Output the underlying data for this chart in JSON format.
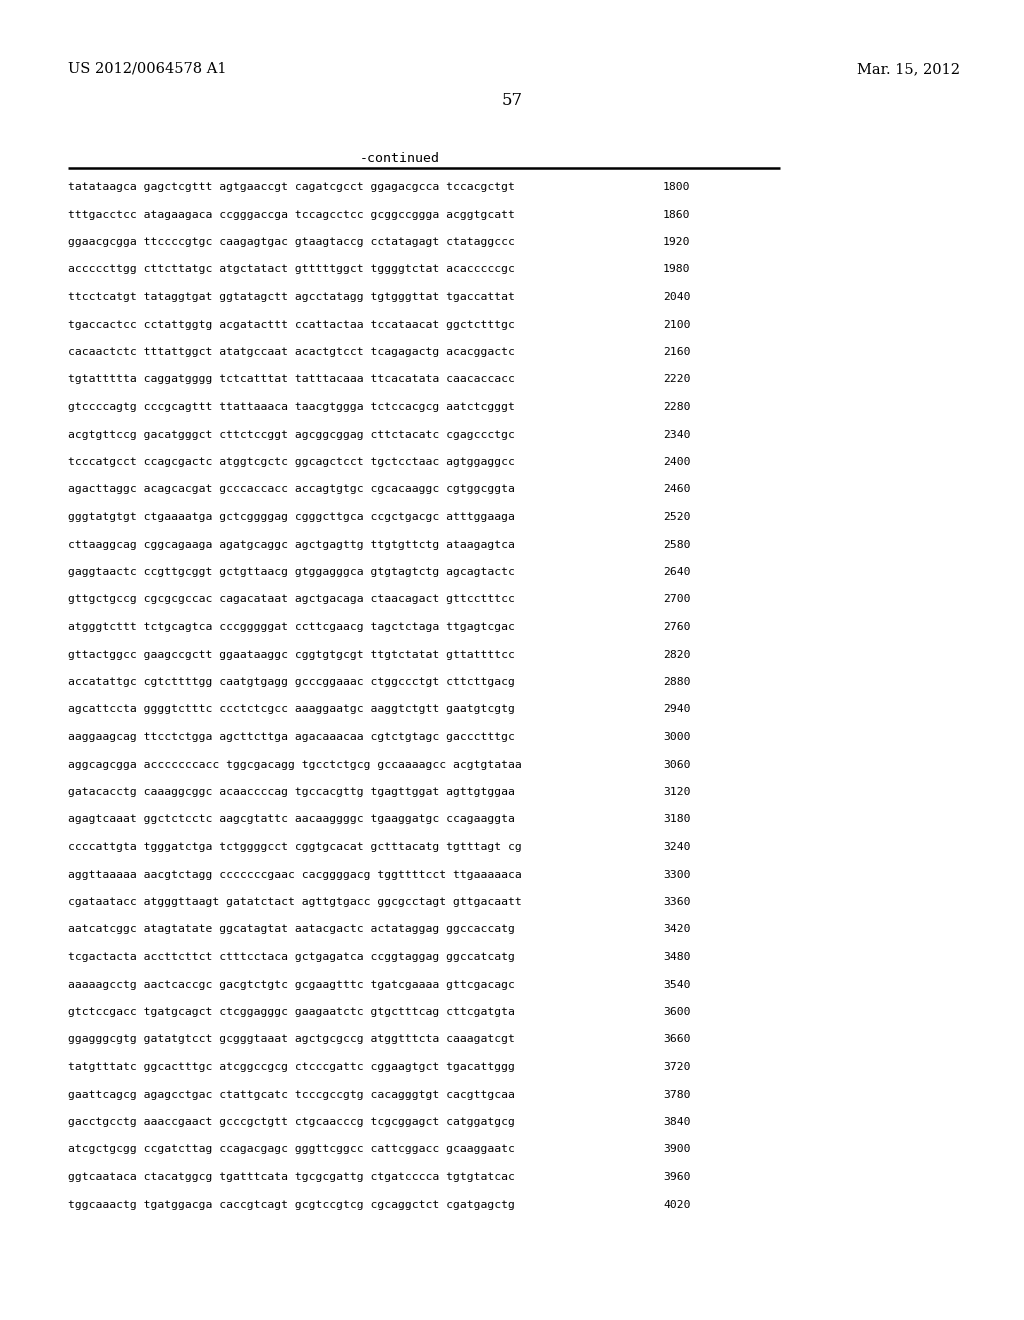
{
  "header_left": "US 2012/0064578 A1",
  "header_right": "Mar. 15, 2012",
  "page_number": "57",
  "continued_label": "-continued",
  "bg_color": "#ffffff",
  "text_color": "#000000",
  "font_size": 8.2,
  "header_font_size": 10.5,
  "page_num_font_size": 12,
  "continued_font_size": 9.5,
  "sequence_lines": [
    [
      "tatataagca gagctcgttt agtgaaccgt cagatcgcct ggagacgcca tccacgctgt",
      "1800"
    ],
    [
      "tttgacctcc atagaagaca ccgggaccga tccagcctcc gcggccggga acggtgcatt",
      "1860"
    ],
    [
      "ggaacgcgga ttccccgtgc caagagtgac gtaagtaccg cctatagagt ctataggccc",
      "1920"
    ],
    [
      "acccccttgg cttcttatgc atgctatact gtttttggct tggggtctat acacccccgc",
      "1980"
    ],
    [
      "ttcctcatgt tataggtgat ggtatagctt agcctatagg tgtgggttat tgaccattat",
      "2040"
    ],
    [
      "tgaccactcc cctattggtg acgatacttt ccattactaa tccataacat ggctctttgc",
      "2100"
    ],
    [
      "cacaactctc tttattggct atatgccaat acactgtcct tcagagactg acacggactc",
      "2160"
    ],
    [
      "tgtattttta caggatgggg tctcatttat tatttacaaa ttcacatata caacaccacc",
      "2220"
    ],
    [
      "gtccccagtg cccgcagttt ttattaaaca taacgtggga tctccacgcg aatctcgggt",
      "2280"
    ],
    [
      "acgtgttccg gacatgggct cttctccggt agcggcggag cttctacatc cgagccctgc",
      "2340"
    ],
    [
      "tcccatgcct ccagcgactc atggtcgctc ggcagctcct tgctcctaac agtggaggcc",
      "2400"
    ],
    [
      "agacttaggc acagcacgat gcccaccacc accagtgtgc cgcacaaggc cgtggcggta",
      "2460"
    ],
    [
      "gggtatgtgt ctgaaaatga gctcggggag cgggcttgca ccgctgacgc atttggaaga",
      "2520"
    ],
    [
      "cttaaggcag cggcagaaga agatgcaggc agctgagttg ttgtgttctg ataagagtca",
      "2580"
    ],
    [
      "gaggtaactc ccgttgcggt gctgttaacg gtggagggca gtgtagtctg agcagtactc",
      "2640"
    ],
    [
      "gttgctgccg cgcgcgccac cagacataat agctgacaga ctaacagact gttcctttcc",
      "2700"
    ],
    [
      "atgggtcttt tctgcagtca cccgggggat ccttcgaacg tagctctaga ttgagtcgac",
      "2760"
    ],
    [
      "gttactggcc gaagccgctt ggaataaggc cggtgtgcgt ttgtctatat gttattttcc",
      "2820"
    ],
    [
      "accatattgc cgtcttttgg caatgtgagg gcccggaaac ctggccctgt cttcttgacg",
      "2880"
    ],
    [
      "agcattccta ggggtctttc ccctctcgcc aaaggaatgc aaggtctgtt gaatgtcgtg",
      "2940"
    ],
    [
      "aaggaagcag ttcctctgga agcttcttga agacaaacaa cgtctgtagc gaccctttgc",
      "3000"
    ],
    [
      "aggcagcgga acccccccacc tggcgacagg tgcctctgcg gccaaaagcc acgtgtataa",
      "3060"
    ],
    [
      "gatacacctg caaaggcggc acaaccccag tgccacgttg tgagttggat agttgtggaa",
      "3120"
    ],
    [
      "agagtcaaat ggctctcctc aagcgtattc aacaaggggc tgaaggatgc ccagaaggta",
      "3180"
    ],
    [
      "ccccattgta tgggatctga tctggggcct cggtgcacat gctttacatg tgtttagt cg",
      "3240"
    ],
    [
      "aggttaaaaa aacgtctagg cccccccgaac cacggggacg tggttttcct ttgaaaaaca",
      "3300"
    ],
    [
      "cgataatacc atgggttaagt gatatctact agttgtgacc ggcgcctagt gttgacaatt",
      "3360"
    ],
    [
      "aatcatcggc atagtatate ggcatagtat aatacgactc actataggag ggccaccatg",
      "3420"
    ],
    [
      "tcgactacta accttcttct ctttcctaca gctgagatca ccggtaggag ggccatcatg",
      "3480"
    ],
    [
      "aaaaagcctg aactcaccgc gacgtctgtc gcgaagtttc tgatcgaaaa gttcgacagc",
      "3540"
    ],
    [
      "gtctccgacc tgatgcagct ctcggagggc gaagaatctc gtgctttcag cttcgatgta",
      "3600"
    ],
    [
      "ggagggcgtg gatatgtcct gcgggtaaat agctgcgccg atggtttcta caaagatcgt",
      "3660"
    ],
    [
      "tatgtttatc ggcactttgc atcggccgcg ctcccgattc cggaagtgct tgacattggg",
      "3720"
    ],
    [
      "gaattcagcg agagcctgac ctattgcatc tcccgccgtg cacagggtgt cacgttgcaa",
      "3780"
    ],
    [
      "gacctgcctg aaaccgaact gcccgctgtt ctgcaacccg tcgcggagct catggatgcg",
      "3840"
    ],
    [
      "atcgctgcgg ccgatcttag ccagacgagc gggttcggcc cattcggacc gcaaggaatc",
      "3900"
    ],
    [
      "ggtcaataca ctacatggcg tgatttcata tgcgcgattg ctgatcccca tgtgtatcac",
      "3960"
    ],
    [
      "tggcaaactg tgatggacga caccgtcagt gcgtccgtcg cgcaggctct cgatgagctg",
      "4020"
    ]
  ]
}
